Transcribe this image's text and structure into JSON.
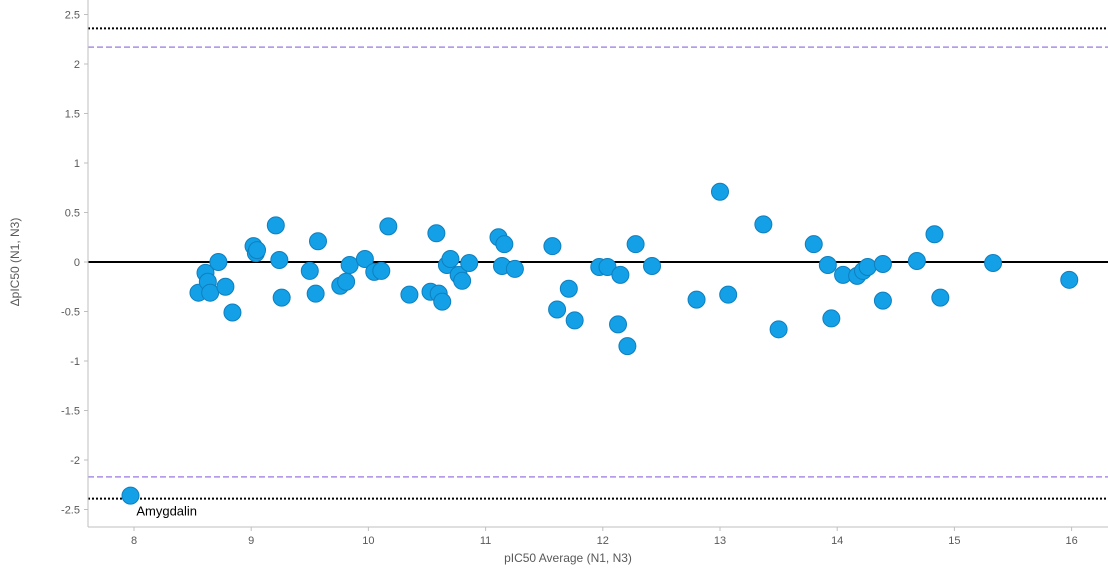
{
  "chart_data": {
    "type": "scatter",
    "title": "",
    "xlabel": "pIC50 Average (N1, N3)",
    "ylabel": "ΔpIC50 (N1, N3)",
    "xlim": [
      7.65,
      16.3
    ],
    "ylim": [
      -2.6,
      2.6
    ],
    "x_ticks": [
      8,
      9,
      10,
      11,
      12,
      13,
      14,
      15,
      16
    ],
    "y_ticks": [
      2.5,
      2,
      1.5,
      1,
      0.5,
      0,
      -0.5,
      -1,
      -1.5,
      -2,
      -2.5
    ],
    "grid": false,
    "reference_lines": [
      {
        "style": "solid",
        "color": "#000000",
        "y": 0
      },
      {
        "style": "dotted",
        "color": "#000000",
        "y": 2.36
      },
      {
        "style": "dotted",
        "color": "#000000",
        "y": -2.39
      },
      {
        "style": "dashed",
        "color": "#a98ee8",
        "y": 2.17
      },
      {
        "style": "dashed",
        "color": "#a98ee8",
        "y": -2.17
      }
    ],
    "annotations": [
      {
        "text": "Amygdalin",
        "x": 8.02,
        "y": -2.5
      }
    ],
    "marker_color": "#13a0e6",
    "marker_edge_color": "#0f7fbf",
    "points": [
      {
        "x": 7.97,
        "y": -2.36
      },
      {
        "x": 8.55,
        "y": -0.31
      },
      {
        "x": 8.61,
        "y": -0.11
      },
      {
        "x": 8.63,
        "y": -0.2
      },
      {
        "x": 8.65,
        "y": -0.31
      },
      {
        "x": 8.72,
        "y": 0.0
      },
      {
        "x": 8.78,
        "y": -0.25
      },
      {
        "x": 8.84,
        "y": -0.51
      },
      {
        "x": 9.02,
        "y": 0.16
      },
      {
        "x": 9.04,
        "y": 0.09
      },
      {
        "x": 9.05,
        "y": 0.12
      },
      {
        "x": 9.21,
        "y": 0.37
      },
      {
        "x": 9.24,
        "y": 0.02
      },
      {
        "x": 9.26,
        "y": -0.36
      },
      {
        "x": 9.5,
        "y": -0.09
      },
      {
        "x": 9.55,
        "y": -0.32
      },
      {
        "x": 9.57,
        "y": 0.21
      },
      {
        "x": 9.76,
        "y": -0.24
      },
      {
        "x": 9.81,
        "y": -0.2
      },
      {
        "x": 9.84,
        "y": -0.03
      },
      {
        "x": 9.97,
        "y": 0.03
      },
      {
        "x": 10.05,
        "y": -0.1
      },
      {
        "x": 10.11,
        "y": -0.09
      },
      {
        "x": 10.17,
        "y": 0.36
      },
      {
        "x": 10.35,
        "y": -0.33
      },
      {
        "x": 10.53,
        "y": -0.3
      },
      {
        "x": 10.58,
        "y": 0.29
      },
      {
        "x": 10.6,
        "y": -0.32
      },
      {
        "x": 10.63,
        "y": -0.4
      },
      {
        "x": 10.67,
        "y": -0.03
      },
      {
        "x": 10.7,
        "y": 0.03
      },
      {
        "x": 10.77,
        "y": -0.13
      },
      {
        "x": 10.8,
        "y": -0.19
      },
      {
        "x": 10.86,
        "y": -0.01
      },
      {
        "x": 11.11,
        "y": 0.25
      },
      {
        "x": 11.14,
        "y": -0.04
      },
      {
        "x": 11.16,
        "y": 0.18
      },
      {
        "x": 11.25,
        "y": -0.07
      },
      {
        "x": 11.57,
        "y": 0.16
      },
      {
        "x": 11.61,
        "y": -0.48
      },
      {
        "x": 11.71,
        "y": -0.27
      },
      {
        "x": 11.76,
        "y": -0.59
      },
      {
        "x": 11.97,
        "y": -0.05
      },
      {
        "x": 12.04,
        "y": -0.05
      },
      {
        "x": 12.13,
        "y": -0.63
      },
      {
        "x": 12.15,
        "y": -0.13
      },
      {
        "x": 12.21,
        "y": -0.85
      },
      {
        "x": 12.28,
        "y": 0.18
      },
      {
        "x": 12.42,
        "y": -0.04
      },
      {
        "x": 12.8,
        "y": -0.38
      },
      {
        "x": 13.0,
        "y": 0.71
      },
      {
        "x": 13.07,
        "y": -0.33
      },
      {
        "x": 13.37,
        "y": 0.38
      },
      {
        "x": 13.5,
        "y": -0.68
      },
      {
        "x": 13.8,
        "y": 0.18
      },
      {
        "x": 13.92,
        "y": -0.03
      },
      {
        "x": 13.95,
        "y": -0.57
      },
      {
        "x": 14.05,
        "y": -0.13
      },
      {
        "x": 14.17,
        "y": -0.14
      },
      {
        "x": 14.22,
        "y": -0.09
      },
      {
        "x": 14.26,
        "y": -0.05
      },
      {
        "x": 14.39,
        "y": -0.02
      },
      {
        "x": 14.39,
        "y": -0.39
      },
      {
        "x": 14.68,
        "y": 0.01
      },
      {
        "x": 14.83,
        "y": 0.28
      },
      {
        "x": 14.88,
        "y": -0.36
      },
      {
        "x": 15.33,
        "y": -0.01
      },
      {
        "x": 15.98,
        "y": -0.18
      }
    ]
  }
}
